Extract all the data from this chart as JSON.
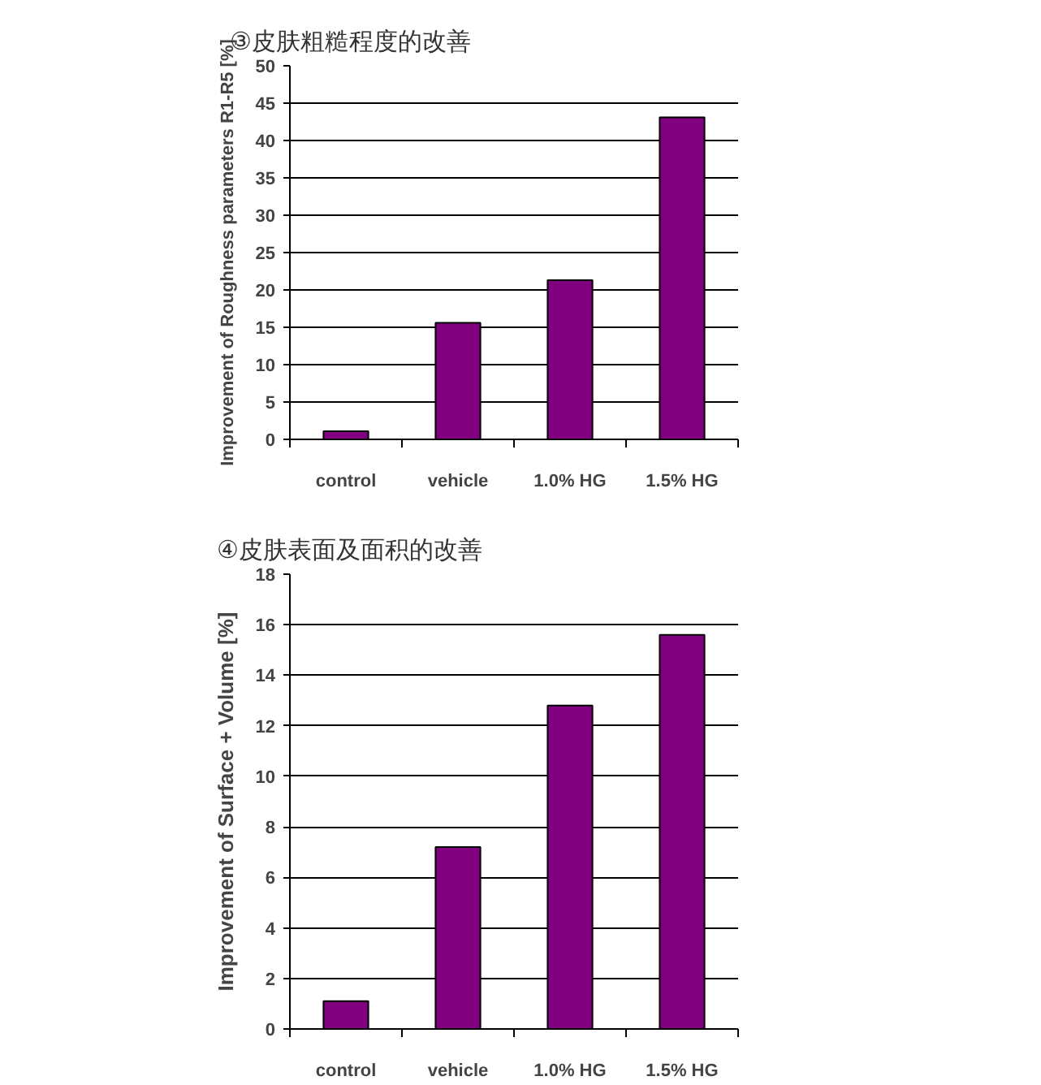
{
  "chart_data": [
    {
      "type": "bar",
      "title": "③皮肤粗糙程度的改善",
      "ylabel": "Improvement of Roughness parameters R1-R5 [%]",
      "categories": [
        "control",
        "vehicle",
        "1.0% HG",
        "1.5% HG"
      ],
      "values": [
        1.1,
        15.6,
        21.3,
        43.1
      ],
      "color": "#800080",
      "ylim": [
        0,
        50
      ],
      "yticks": [
        0,
        5,
        10,
        15,
        20,
        25,
        30,
        35,
        40,
        45,
        50
      ],
      "grid": "y"
    },
    {
      "type": "bar",
      "title": "④皮肤表面及面积的改善",
      "ylabel": "Improvement of Surface + Volume [%]",
      "categories": [
        "control",
        "vehicle",
        "1.0% HG",
        "1.5% HG"
      ],
      "values": [
        1.1,
        7.2,
        12.8,
        15.6
      ],
      "color": "#800080",
      "ylim": [
        0,
        18
      ],
      "yticks": [
        0,
        2,
        4,
        6,
        8,
        10,
        12,
        14,
        16,
        18
      ],
      "grid": "y"
    }
  ]
}
